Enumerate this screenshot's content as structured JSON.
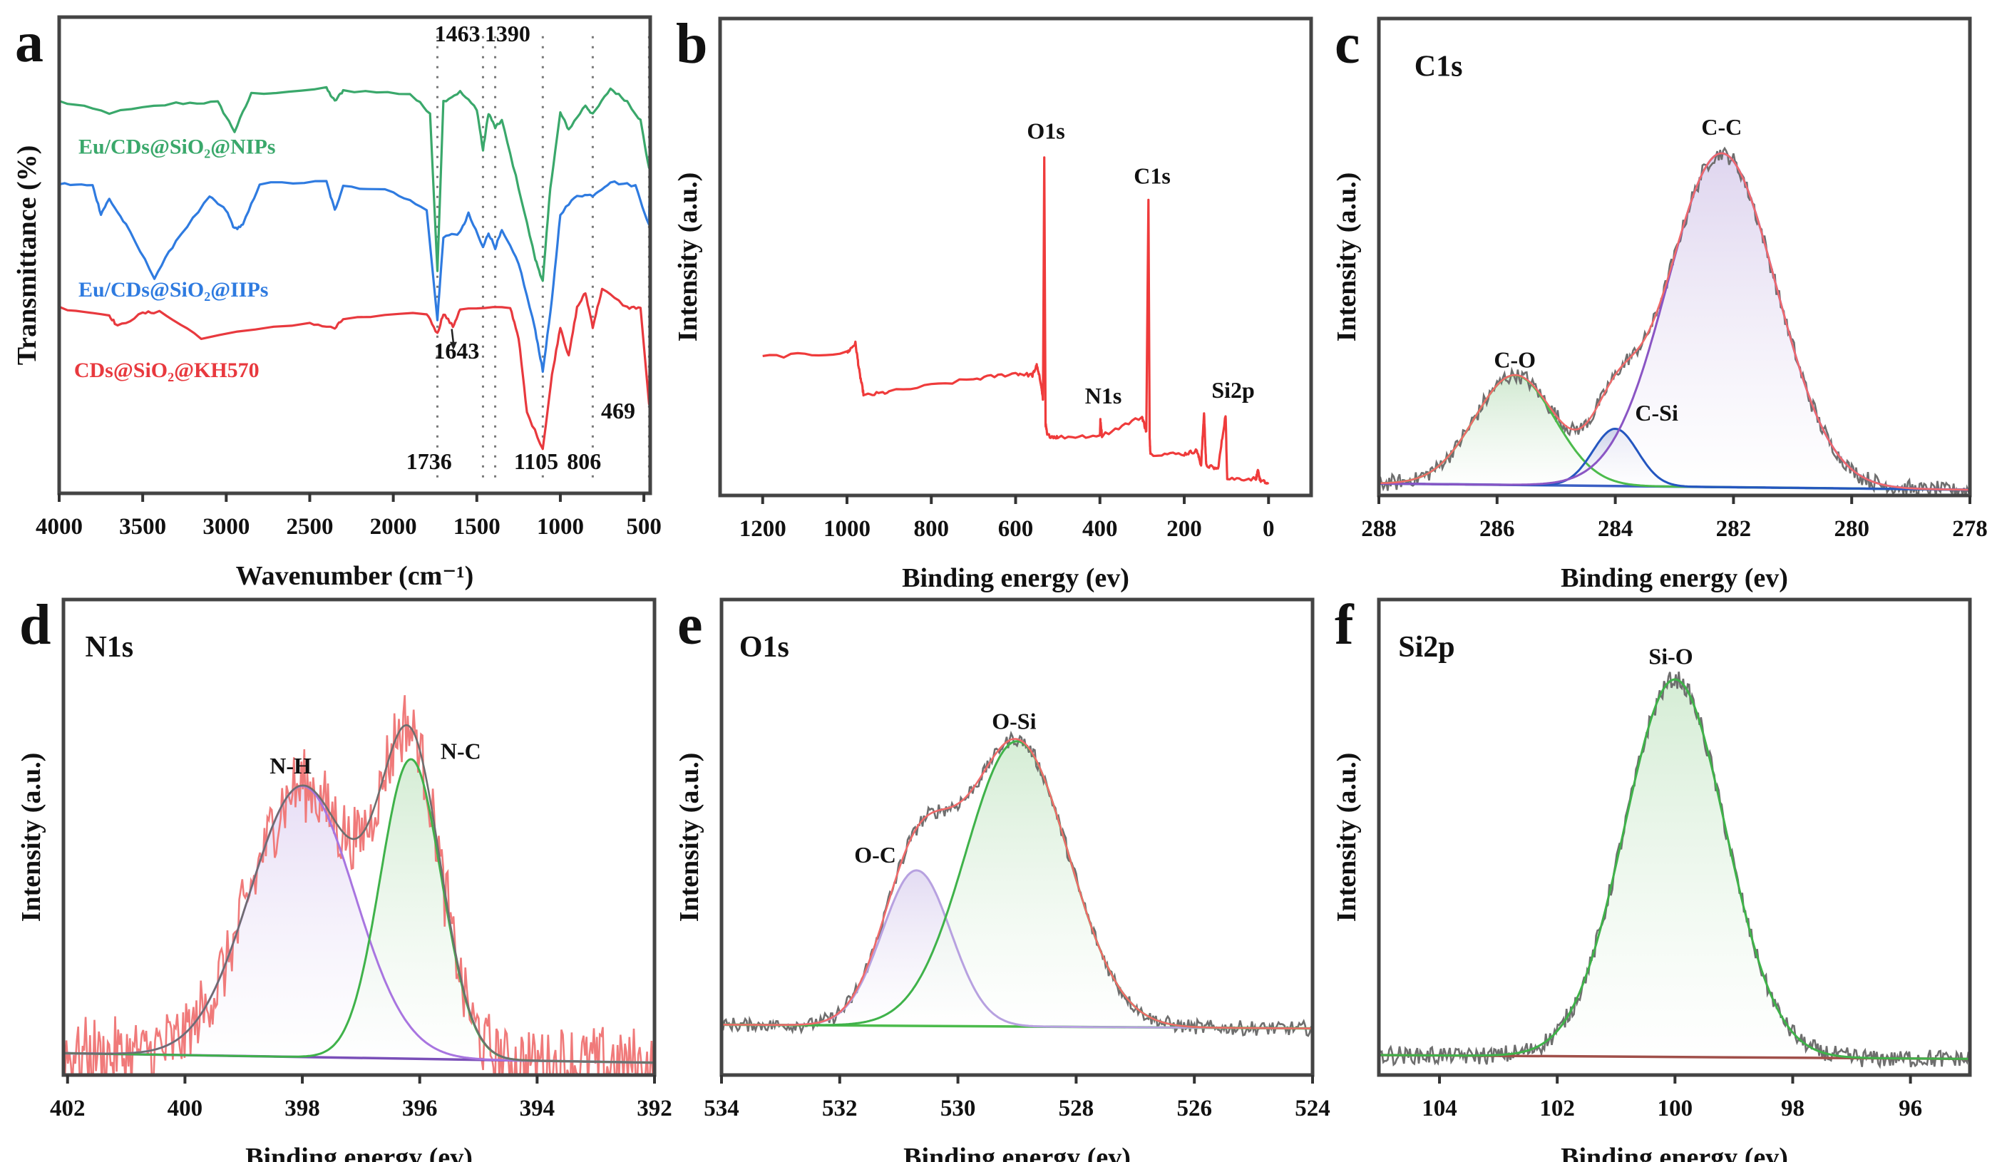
{
  "chart_data": [
    {
      "panel": "a",
      "type": "line",
      "title": "",
      "xlabel": "Wavenumber (cm⁻¹)",
      "ylabel": "Transmittance (%)",
      "xlim": [
        4000,
        462
      ],
      "ylim": [
        0,
        100
      ],
      "xticks": [
        4000,
        3500,
        3000,
        2500,
        2000,
        1500,
        1000,
        500
      ],
      "grid": false,
      "reference_lines": [
        1736,
        1463,
        1390,
        1105,
        806,
        469
      ],
      "series": [
        {
          "name": "Eu/CDs@SiO₂@NIPs",
          "color": "#3aa86b",
          "x": [
            4000,
            3700,
            3300,
            3050,
            2950,
            2850,
            2400,
            2350,
            2300,
            1900,
            1780,
            1736,
            1700,
            1600,
            1500,
            1463,
            1430,
            1390,
            1350,
            1250,
            1150,
            1105,
            1060,
            1000,
            950,
            850,
            806,
            700,
            600,
            520,
            469,
            430,
            462
          ],
          "y": [
            82.3,
            79.9,
            81.9,
            82.1,
            76,
            83.9,
            85,
            82.3,
            84.6,
            83.9,
            79.9,
            46.9,
            82.3,
            84.3,
            80.7,
            72,
            79.9,
            76.8,
            78.3,
            64.2,
            49.2,
            44.5,
            64.2,
            79.9,
            76.4,
            81.5,
            79.5,
            85,
            82.3,
            78.3,
            68.1,
            76,
            83.9
          ]
        },
        {
          "name": "Eu/CDs@SiO₂@IIPs",
          "color": "#2f7be0",
          "x": [
            4000,
            3800,
            3750,
            3700,
            3600,
            3430,
            3300,
            3100,
            3000,
            2950,
            2900,
            2800,
            2400,
            2350,
            2300,
            2000,
            1800,
            1736,
            1700,
            1600,
            1550,
            1463,
            1430,
            1390,
            1350,
            1250,
            1150,
            1105,
            1050,
            1000,
            900,
            806,
            700,
            550,
            469,
            462
          ],
          "y": [
            65,
            64.6,
            58.7,
            61.8,
            56.3,
            45.3,
            53.1,
            62.2,
            59.4,
            55.5,
            56.3,
            65,
            65.4,
            59.4,
            64.6,
            63.4,
            59.4,
            36.6,
            53.9,
            54.7,
            58.7,
            51.6,
            54.7,
            51.6,
            55.1,
            48.4,
            34.3,
            25.6,
            40.6,
            58.7,
            62.6,
            62.6,
            65.4,
            64.6,
            56.3,
            69.7
          ]
        },
        {
          "name": "CDs@SiO₂@KH570",
          "color": "#e8393e",
          "x": [
            4000,
            3700,
            3650,
            3500,
            3400,
            3150,
            2500,
            2350,
            2300,
            1800,
            1736,
            1700,
            1643,
            1600,
            1300,
            1250,
            1200,
            1105,
            1050,
            1000,
            950,
            900,
            850,
            806,
            750,
            600,
            520,
            469,
            462
          ],
          "y": [
            39,
            37.4,
            35,
            37.8,
            38.2,
            32.7,
            35.8,
            34.6,
            36.6,
            37.8,
            33.5,
            37.8,
            35,
            38.6,
            39,
            32.7,
            16.9,
            9.4,
            24.8,
            35,
            28.7,
            39,
            42.1,
            35,
            42.9,
            39,
            39,
            18.5,
            38.2
          ]
        }
      ],
      "legend": [
        {
          "text": "Eu/CDs@SiO₂@NIPs",
          "x": 3885,
          "y": 71.3,
          "color": "#3aa86b"
        },
        {
          "text": "Eu/CDs@SiO₂@IIPs",
          "x": 3885,
          "y": 41.3,
          "color": "#2f7be0"
        },
        {
          "text": "CDs@SiO₂@KH570",
          "x": 3911,
          "y": 24.4,
          "color": "#e8393e"
        }
      ],
      "annotations": [
        {
          "text": "1463",
          "x": 1616,
          "y": 94.9
        },
        {
          "text": "1390",
          "x": 1316,
          "y": 94.9
        },
        {
          "text": "1736",
          "x": 1786,
          "y": 5.1
        },
        {
          "text": "1643",
          "x": 1621,
          "y": 28.3,
          "arrow_to": [
            1650,
            34.5
          ],
          "arrow_from": [
            1640,
            31.5
          ]
        },
        {
          "text": "1105",
          "x": 1145,
          "y": 5.1
        },
        {
          "text": "806",
          "x": 858,
          "y": 5.1
        },
        {
          "text": "469",
          "x": 654,
          "y": 15.7
        }
      ]
    },
    {
      "panel": "b",
      "type": "line",
      "title": "",
      "xlabel": "Binding energy (ev)",
      "ylabel": "Intensity (a.u.)",
      "xlim": [
        1301,
        -101
      ],
      "ylim": [
        0,
        100
      ],
      "xticks": [
        1200,
        1000,
        800,
        600,
        400,
        200,
        0
      ],
      "series": [
        {
          "name": "survey",
          "color": "#ef3b3b",
          "noise": 0.8,
          "x": [
            1200,
            1000,
            980,
            970,
            960,
            900,
            700,
            600,
            560,
            550,
            540,
            535,
            532,
            529,
            525,
            500,
            400,
            399,
            395,
            300,
            290,
            285,
            282,
            280,
            200,
            170,
            160,
            153,
            148,
            120,
            102,
            98,
            30,
            25,
            20,
            0
          ],
          "y": [
            29.1,
            29.9,
            31.9,
            25.6,
            20.9,
            21.7,
            24.4,
            25.6,
            25.2,
            27.2,
            23.6,
            20,
            70.9,
            15,
            12.6,
            12.2,
            12.6,
            15.7,
            12.6,
            16.5,
            13.4,
            61.8,
            12,
            8.7,
            8.7,
            9.4,
            6.3,
            17.3,
            6.3,
            5.5,
            16.9,
            3.5,
            3.5,
            5.1,
            3.2,
            2.4
          ]
        }
      ],
      "annotations": [
        {
          "text": "O1s",
          "x": 528,
          "y": 74.8
        },
        {
          "text": "C1s",
          "x": 276,
          "y": 65.4
        },
        {
          "text": "N1s",
          "x": 392,
          "y": 19.3
        },
        {
          "text": "Si2p",
          "x": 84,
          "y": 20.5
        }
      ]
    },
    {
      "panel": "c",
      "type": "line",
      "title": "C1s",
      "title_pos": [
        287.4,
        88
      ],
      "xlabel": "Binding energy (ev)",
      "ylabel": "Intensity (a.u.)",
      "xlim": [
        288,
        278
      ],
      "ylim": [
        0,
        100
      ],
      "xticks": [
        288,
        286,
        284,
        282,
        280,
        278
      ],
      "baseline": [
        2.5,
        1.2
      ],
      "baseline_color": "#3b5fc4",
      "envelope_color": "#f06a6a",
      "raw_color": "#6e6e6e",
      "raw_noise": 1.6,
      "peaks": [
        {
          "label": "C-O",
          "center": 285.7,
          "height": 23,
          "sigma": 0.68,
          "color": "#4cbb4c",
          "fill": "#cfe8cf",
          "label_pos": [
            285.7,
            26.8
          ]
        },
        {
          "label": "C-Si",
          "center": 284.0,
          "height": 12,
          "sigma": 0.38,
          "color": "#2456c0",
          "fill": "#c9cfe8",
          "label_pos": [
            283.3,
            15.7
          ]
        },
        {
          "label": "C-C",
          "center": 282.2,
          "height": 70,
          "sigma": 0.92,
          "color": "#8a55c4",
          "fill": "#ddd3ee",
          "label_pos": [
            282.2,
            75.6
          ]
        }
      ]
    },
    {
      "panel": "d",
      "type": "line",
      "title": "N1s",
      "title_pos": [
        401.7,
        88
      ],
      "xlabel": "Binding energy (ev)",
      "ylabel": "Intensity (a.u.)",
      "xlim": [
        402.07,
        392
      ],
      "ylim": [
        0,
        100
      ],
      "xticks": [
        402,
        400,
        398,
        396,
        394,
        392
      ],
      "baseline": [
        4.6,
        2.6
      ],
      "baseline_color": "#7a4fb8",
      "envelope_color": "#6e6e6e",
      "raw_color": "#f07a7a",
      "raw_noise": 7,
      "peaks": [
        {
          "label": "N-H",
          "center": 398.0,
          "height": 57,
          "sigma": 0.89,
          "color": "#a875e0",
          "fill": "#e6dcf5",
          "label_pos": [
            398.2,
            63.4
          ]
        },
        {
          "label": "N-C",
          "center": 396.15,
          "height": 63,
          "sigma": 0.52,
          "color": "#3fb24a",
          "fill": "#d3ecd3",
          "label_pos": [
            395.3,
            66.5
          ]
        }
      ]
    },
    {
      "panel": "e",
      "type": "line",
      "title": "O1s",
      "title_pos": [
        533.7,
        88
      ],
      "xlabel": "Binding energy (ev)",
      "ylabel": "Intensity (a.u.)",
      "xlim": [
        534,
        524
      ],
      "ylim": [
        0,
        100
      ],
      "xticks": [
        534,
        532,
        530,
        528,
        526,
        524
      ],
      "baseline": [
        10.6,
        9.8
      ],
      "baseline_color": "#4cbb4c",
      "envelope_color": "#f06a6a",
      "raw_color": "#6e6e6e",
      "raw_noise": 1.4,
      "peaks": [
        {
          "label": "O-C",
          "center": 530.7,
          "height": 32.7,
          "sigma": 0.58,
          "color": "#b7a1e0",
          "fill": "#e2daf2",
          "label_pos": [
            531.4,
            44.7
          ]
        },
        {
          "label": "O-Si",
          "center": 529.0,
          "height": 60,
          "sigma": 0.87,
          "color": "#3fb24a",
          "fill": "#d3ecd3",
          "label_pos": [
            529.05,
            72.8
          ]
        }
      ]
    },
    {
      "panel": "f",
      "type": "line",
      "title": "Si2p",
      "title_pos": [
        104.7,
        88
      ],
      "xlabel": "Binding energy (ev)",
      "ylabel": "Intensity (a.u.)",
      "xlim": [
        105.03,
        94.99
      ],
      "ylim": [
        0,
        100
      ],
      "xticks": [
        104,
        102,
        100,
        98,
        96
      ],
      "baseline": [
        4.2,
        3.4
      ],
      "baseline_color": "#a0504a",
      "envelope_color": "#3fb24a",
      "raw_color": "#6e6e6e",
      "raw_noise": 1.8,
      "peaks": [
        {
          "label": "Si-O",
          "center": 100.0,
          "height": 79.4,
          "sigma": 0.86,
          "color": "#3fb24a",
          "fill": "#d3ecd3",
          "label_pos": [
            100.07,
            86.4
          ]
        }
      ]
    }
  ]
}
